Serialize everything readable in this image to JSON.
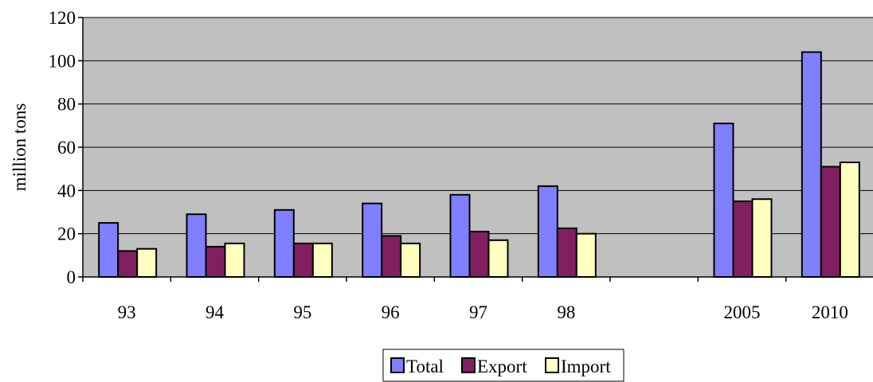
{
  "chart_data": {
    "type": "bar",
    "categories": [
      "93",
      "94",
      "95",
      "96",
      "97",
      "98",
      "",
      "2005",
      "2010"
    ],
    "series": [
      {
        "name": "Total",
        "color": "#8080ff",
        "values": [
          25,
          29,
          31,
          34,
          38,
          42,
          null,
          71,
          104
        ]
      },
      {
        "name": "Export",
        "color": "#802060",
        "values": [
          12,
          14,
          15.5,
          19,
          21,
          22.5,
          null,
          35,
          51
        ]
      },
      {
        "name": "Import",
        "color": "#ffffc0",
        "values": [
          13,
          15.5,
          15.5,
          15.5,
          17,
          20,
          null,
          36,
          53
        ]
      }
    ],
    "ylabel": "million tons",
    "xlabel": "",
    "ylim": [
      0,
      120
    ],
    "yticks": [
      "0",
      "20",
      "40",
      "60",
      "80",
      "100",
      "120"
    ],
    "grid": true,
    "plot_background": "#c0c0c0",
    "legend_position": "bottom"
  }
}
